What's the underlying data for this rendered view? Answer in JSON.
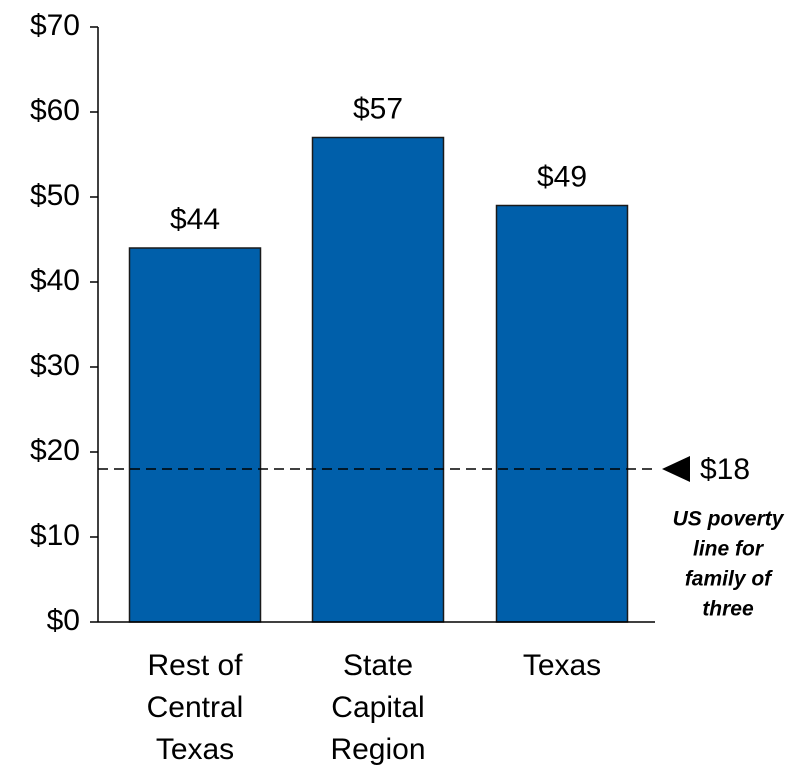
{
  "chart_data": {
    "type": "bar",
    "categories": [
      [
        "Rest of",
        "Central",
        "Texas"
      ],
      [
        "State",
        "Capital",
        "Region"
      ],
      [
        "Texas"
      ]
    ],
    "values": [
      44,
      57,
      49
    ],
    "value_labels": [
      "$44",
      "$57",
      "$49"
    ],
    "color": "#005faa",
    "ylim": [
      0,
      70
    ],
    "yticks": [
      {
        "value": 0,
        "label": "$0"
      },
      {
        "value": 10,
        "label": "$10"
      },
      {
        "value": 20,
        "label": "$20"
      },
      {
        "value": 30,
        "label": "$30"
      },
      {
        "value": 40,
        "label": "$40"
      },
      {
        "value": 50,
        "label": "$50"
      },
      {
        "value": 60,
        "label": "$60"
      },
      {
        "value": 70,
        "label": "$70"
      }
    ],
    "reference_line": {
      "value": 18,
      "label": "$18",
      "note": [
        "US poverty",
        "line for",
        "family of",
        "three"
      ]
    }
  }
}
